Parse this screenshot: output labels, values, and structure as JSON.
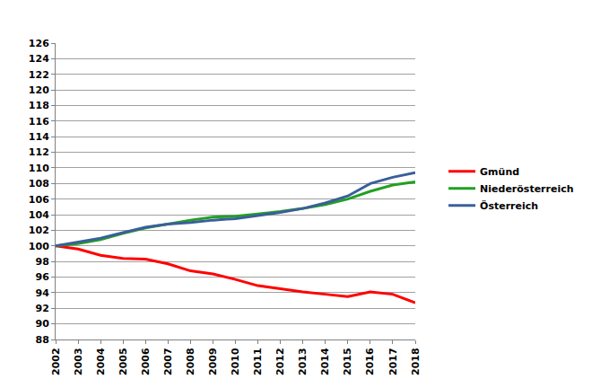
{
  "chart_data": {
    "type": "line",
    "x": [
      2002,
      2003,
      2004,
      2005,
      2006,
      2007,
      2008,
      2009,
      2010,
      2011,
      2012,
      2013,
      2014,
      2015,
      2016,
      2017,
      2018
    ],
    "series": [
      {
        "name": "Gmünd",
        "color": "#ff0000",
        "values": [
          100,
          99.6,
          98.8,
          98.4,
          98.3,
          97.7,
          96.8,
          96.4,
          95.7,
          94.9,
          94.5,
          94.1,
          93.8,
          93.5,
          94.1,
          93.8,
          92.7
        ]
      },
      {
        "name": "Niederösterreich",
        "color": "#22a022",
        "values": [
          100,
          100.3,
          100.8,
          101.6,
          102.3,
          102.8,
          103.3,
          103.7,
          103.8,
          104.1,
          104.4,
          104.8,
          105.3,
          106.0,
          107.0,
          107.8,
          108.2
        ]
      },
      {
        "name": "Österreich",
        "color": "#3a5f9a",
        "values": [
          100,
          100.5,
          101.0,
          101.7,
          102.4,
          102.8,
          103.0,
          103.3,
          103.5,
          103.9,
          104.3,
          104.8,
          105.5,
          106.4,
          108.0,
          108.8,
          109.4
        ]
      }
    ],
    "xlim": [
      2002,
      2018
    ],
    "xticks": [
      2002,
      2003,
      2004,
      2005,
      2006,
      2007,
      2008,
      2009,
      2010,
      2011,
      2012,
      2013,
      2014,
      2015,
      2016,
      2017,
      2018
    ],
    "ylim": [
      88,
      126
    ],
    "yticks": [
      88,
      90,
      92,
      94,
      96,
      98,
      100,
      102,
      104,
      106,
      108,
      110,
      112,
      114,
      116,
      118,
      120,
      122,
      124,
      126
    ],
    "grid": true,
    "legend": "right"
  }
}
